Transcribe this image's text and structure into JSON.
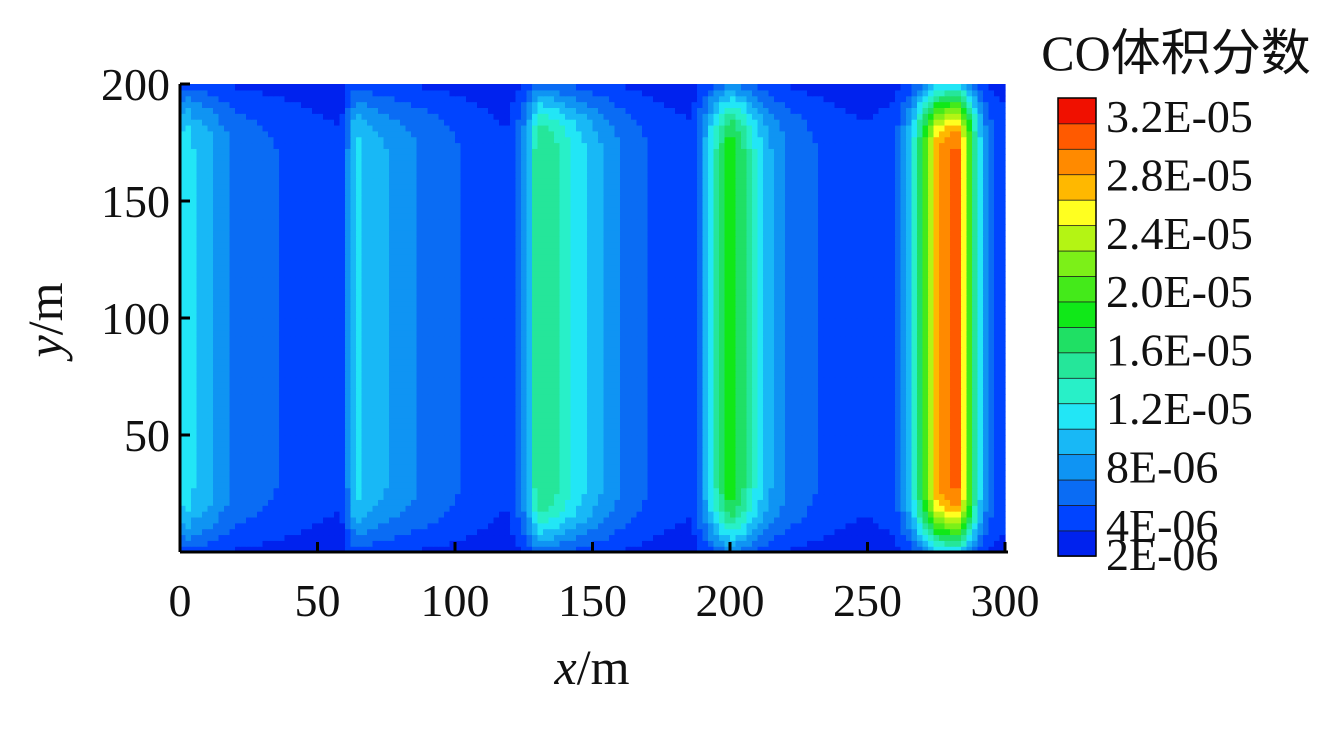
{
  "chart_data": {
    "type": "heatmap",
    "xlabel": {
      "var": "x",
      "unit": "/m"
    },
    "ylabel": {
      "var": "y",
      "unit": "/m"
    },
    "xlim": [
      0,
      300
    ],
    "ylim": [
      0,
      200
    ],
    "x_ticks": [
      "0",
      "50",
      "100",
      "150",
      "200",
      "250",
      "300"
    ],
    "y_ticks": [
      "50",
      "100",
      "150",
      "200"
    ],
    "colorbar": {
      "title": "CO体积分数",
      "position": "right",
      "levels": [
        2e-06,
        4e-06,
        6e-06,
        8e-06,
        1e-05,
        1.2e-05,
        1.4e-05,
        1.6e-05,
        1.8e-05,
        2e-05,
        2.2e-05,
        2.4e-05,
        2.6e-05,
        2.8e-05,
        3e-05,
        3.2e-05
      ],
      "colors": [
        "#0022ee",
        "#0044ff",
        "#0a6cf4",
        "#0f94f3",
        "#18b8f6",
        "#22e6f6",
        "#28f0c8",
        "#25e69a",
        "#1fe064",
        "#10e818",
        "#44ea1a",
        "#7cf018",
        "#b4f414",
        "#ffff20",
        "#ffb800",
        "#ff8a00",
        "#ff5a00",
        "#f01000"
      ],
      "tick_labels": [
        {
          "text": "3.2E-05",
          "value": 3.2e-05
        },
        {
          "text": "2.8E-05",
          "value": 2.8e-05
        },
        {
          "text": "2.4E-05",
          "value": 2.4e-05
        },
        {
          "text": "2.0E-05",
          "value": 2e-05
        },
        {
          "text": "1.6E-05",
          "value": 1.6e-05
        },
        {
          "text": "1.2E-05",
          "value": 1.2e-05
        },
        {
          "text": "8E-06",
          "value": 8e-06
        },
        {
          "text": "4E-06",
          "value": 4e-06
        },
        {
          "text": "2E-06",
          "value": 2e-06
        }
      ]
    },
    "x": [
      0,
      2,
      5,
      10,
      15,
      20,
      30,
      40,
      50,
      58,
      60,
      62,
      65,
      70,
      80,
      90,
      100,
      110,
      118,
      120,
      122,
      126,
      130,
      134,
      140,
      150,
      160,
      170,
      180,
      186,
      190,
      195,
      200,
      205,
      210,
      215,
      220,
      230,
      240,
      250,
      260,
      266,
      270,
      275,
      280,
      283,
      286,
      290,
      293,
      296,
      300
    ],
    "profile": [
      1e-05,
      1.2e-05,
      1e-05,
      9e-06,
      7e-06,
      5.5e-06,
      4.5e-06,
      3.5e-06,
      2.6e-06,
      2.2e-06,
      3e-06,
      9e-06,
      1.05e-05,
      9e-06,
      7e-06,
      5.5e-06,
      4.2e-06,
      3e-06,
      2.2e-06,
      2.4e-06,
      4e-06,
      8e-06,
      1.6e-05,
      1.55e-05,
      1.3e-05,
      9e-06,
      6e-06,
      4e-06,
      2.8e-06,
      2.4e-06,
      7e-06,
      1.4e-05,
      1.95e-05,
      1.6e-05,
      1.1e-05,
      8e-06,
      6e-06,
      4.2e-06,
      3e-06,
      2.3e-06,
      3.5e-06,
      1e-05,
      1.9e-05,
      2.9e-05,
      3.2e-05,
      3.2e-05,
      2.5e-05,
      1.2e-05,
      7e-06,
      4e-06,
      3.5e-06
    ],
    "edge_dip": {
      "y_end_falloff_m": 28,
      "min_factor": 0.3
    }
  }
}
